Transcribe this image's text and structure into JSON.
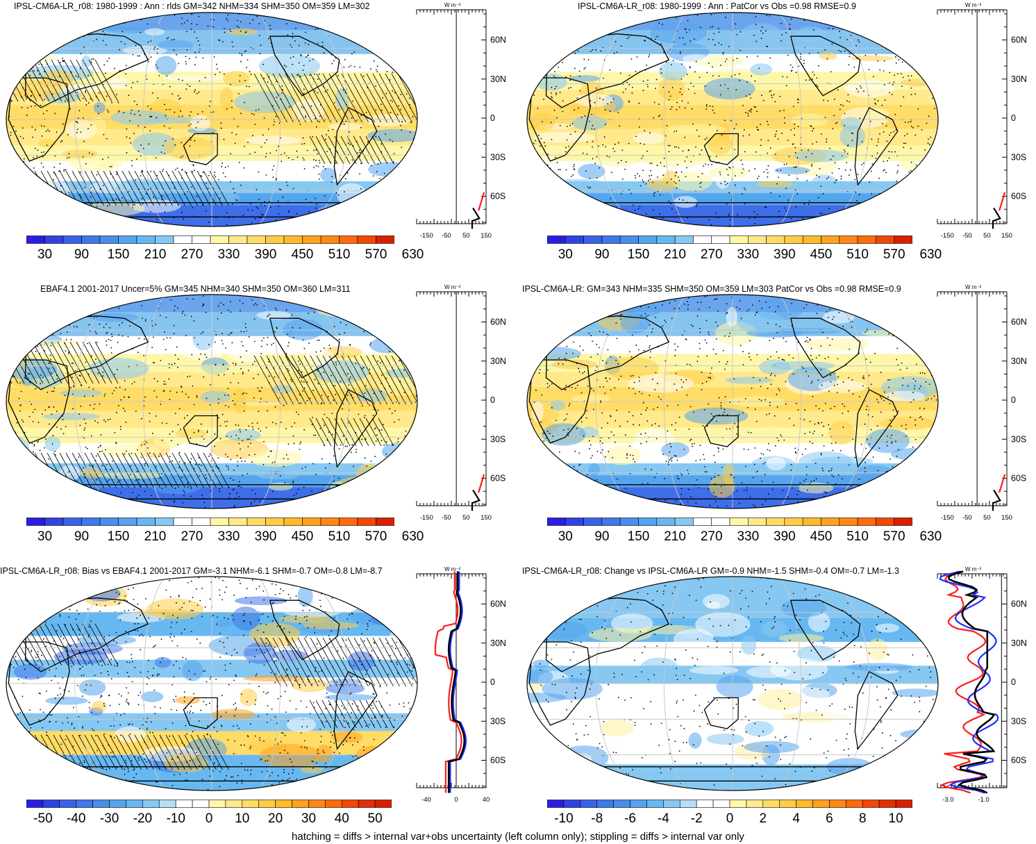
{
  "footer": "hatching = diffs > internal var+obs uncertainty (left column only); stippling = diffs > internal var only",
  "zonal_unit": "W m⁻²",
  "lat_ticks": [
    "60N",
    "30N",
    "0",
    "30S",
    "60S"
  ],
  "colors": {
    "abs_scale": [
      "#2a1ee0",
      "#2f43e3",
      "#3a62e8",
      "#3e78ea",
      "#4a8eec",
      "#55a4ee",
      "#67b8f0",
      "#86c8f2",
      "#ffffff",
      "#ffffff",
      "#fff7a8",
      "#ffe98a",
      "#ffdc66",
      "#ffcd45",
      "#ffba2a",
      "#ffa21e",
      "#ff8714",
      "#ff6a0c",
      "#f24806",
      "#d81f02"
    ],
    "zonal_black": "#000000",
    "zonal_red": "#ff1a1a",
    "zonal_blue": "#1a2cff"
  },
  "chart_data": [
    {
      "type": "heatmap",
      "title": "IPSL-CM6A-LR_r08: 1980-1999 : Ann : rlds GM=342 NHM=334 SHM=350 OM=359 LM=302",
      "colorbar_ticks": [
        "30",
        "90",
        "150",
        "210",
        "270",
        "330",
        "390",
        "450",
        "510",
        "570",
        "630"
      ],
      "zonal_xticks": [
        "-150",
        "-50",
        "50",
        "150"
      ],
      "stats": {
        "GM": 342,
        "NHM": 334,
        "SHM": 350,
        "OM": 359,
        "LM": 302
      }
    },
    {
      "type": "heatmap",
      "title": "IPSL-CM6A-LR_r08: 1980-1999 : Ann : PatCor vs Obs =0.98 RMSE=0.9",
      "colorbar_ticks": [
        "30",
        "90",
        "150",
        "210",
        "270",
        "330",
        "390",
        "450",
        "510",
        "570",
        "630"
      ],
      "zonal_xticks": [
        "-150",
        "-50",
        "50",
        "150"
      ],
      "stats": {
        "PatCor": 0.98,
        "RMSE": 0.9
      }
    },
    {
      "type": "heatmap",
      "title": "EBAF4.1 2001-2017 Uncer=5% GM=345 NHM=340 SHM=350 OM=360 LM=311",
      "colorbar_ticks": [
        "30",
        "90",
        "150",
        "210",
        "270",
        "330",
        "390",
        "450",
        "510",
        "570",
        "630"
      ],
      "zonal_xticks": [
        "-150",
        "-50",
        "50",
        "150"
      ],
      "stats": {
        "GM": 345,
        "NHM": 340,
        "SHM": 350,
        "OM": 360,
        "LM": 311
      }
    },
    {
      "type": "heatmap",
      "title": "IPSL-CM6A-LR: GM=343 NHM=335 SHM=350 OM=359 LM=303 PatCor vs Obs =0.98 RMSE=0.9",
      "colorbar_ticks": [
        "30",
        "90",
        "150",
        "210",
        "270",
        "330",
        "390",
        "450",
        "510",
        "570",
        "630"
      ],
      "zonal_xticks": [
        "-150",
        "-50",
        "50",
        "150"
      ],
      "stats": {
        "GM": 343,
        "NHM": 335,
        "SHM": 350,
        "OM": 359,
        "LM": 303,
        "PatCor": 0.98,
        "RMSE": 0.9
      }
    },
    {
      "type": "heatmap",
      "title": "IPSL-CM6A-LR_r08: Bias vs EBAF4.1 2001-2017 GM=-3.1 NHM=-6.1 SHM=-0.7 OM=-0.8 LM=-8.7",
      "colorbar_ticks": [
        "-50",
        "-40",
        "-30",
        "-20",
        "-10",
        "0",
        "10",
        "20",
        "30",
        "40",
        "50"
      ],
      "zonal_xticks": [
        "-40",
        "0",
        "40"
      ],
      "stats": {
        "GM": -3.1,
        "NHM": -6.1,
        "SHM": -0.7,
        "OM": -0.8,
        "LM": -8.7
      }
    },
    {
      "type": "heatmap",
      "title": "IPSL-CM6A-LR_r08: Change vs IPSL-CM6A-LR GM=-0.9 NHM=-1.5 SHM=-0.4 OM=-0.7 LM=-1.3",
      "colorbar_ticks": [
        "-10",
        "-8",
        "-6",
        "-4",
        "-2",
        "0",
        "2",
        "4",
        "6",
        "8",
        "10"
      ],
      "zonal_xticks": [
        "-3.0",
        "-1.0"
      ],
      "stats": {
        "GM": -0.9,
        "NHM": -1.5,
        "SHM": -0.4,
        "OM": -0.7,
        "LM": -1.3
      }
    }
  ]
}
